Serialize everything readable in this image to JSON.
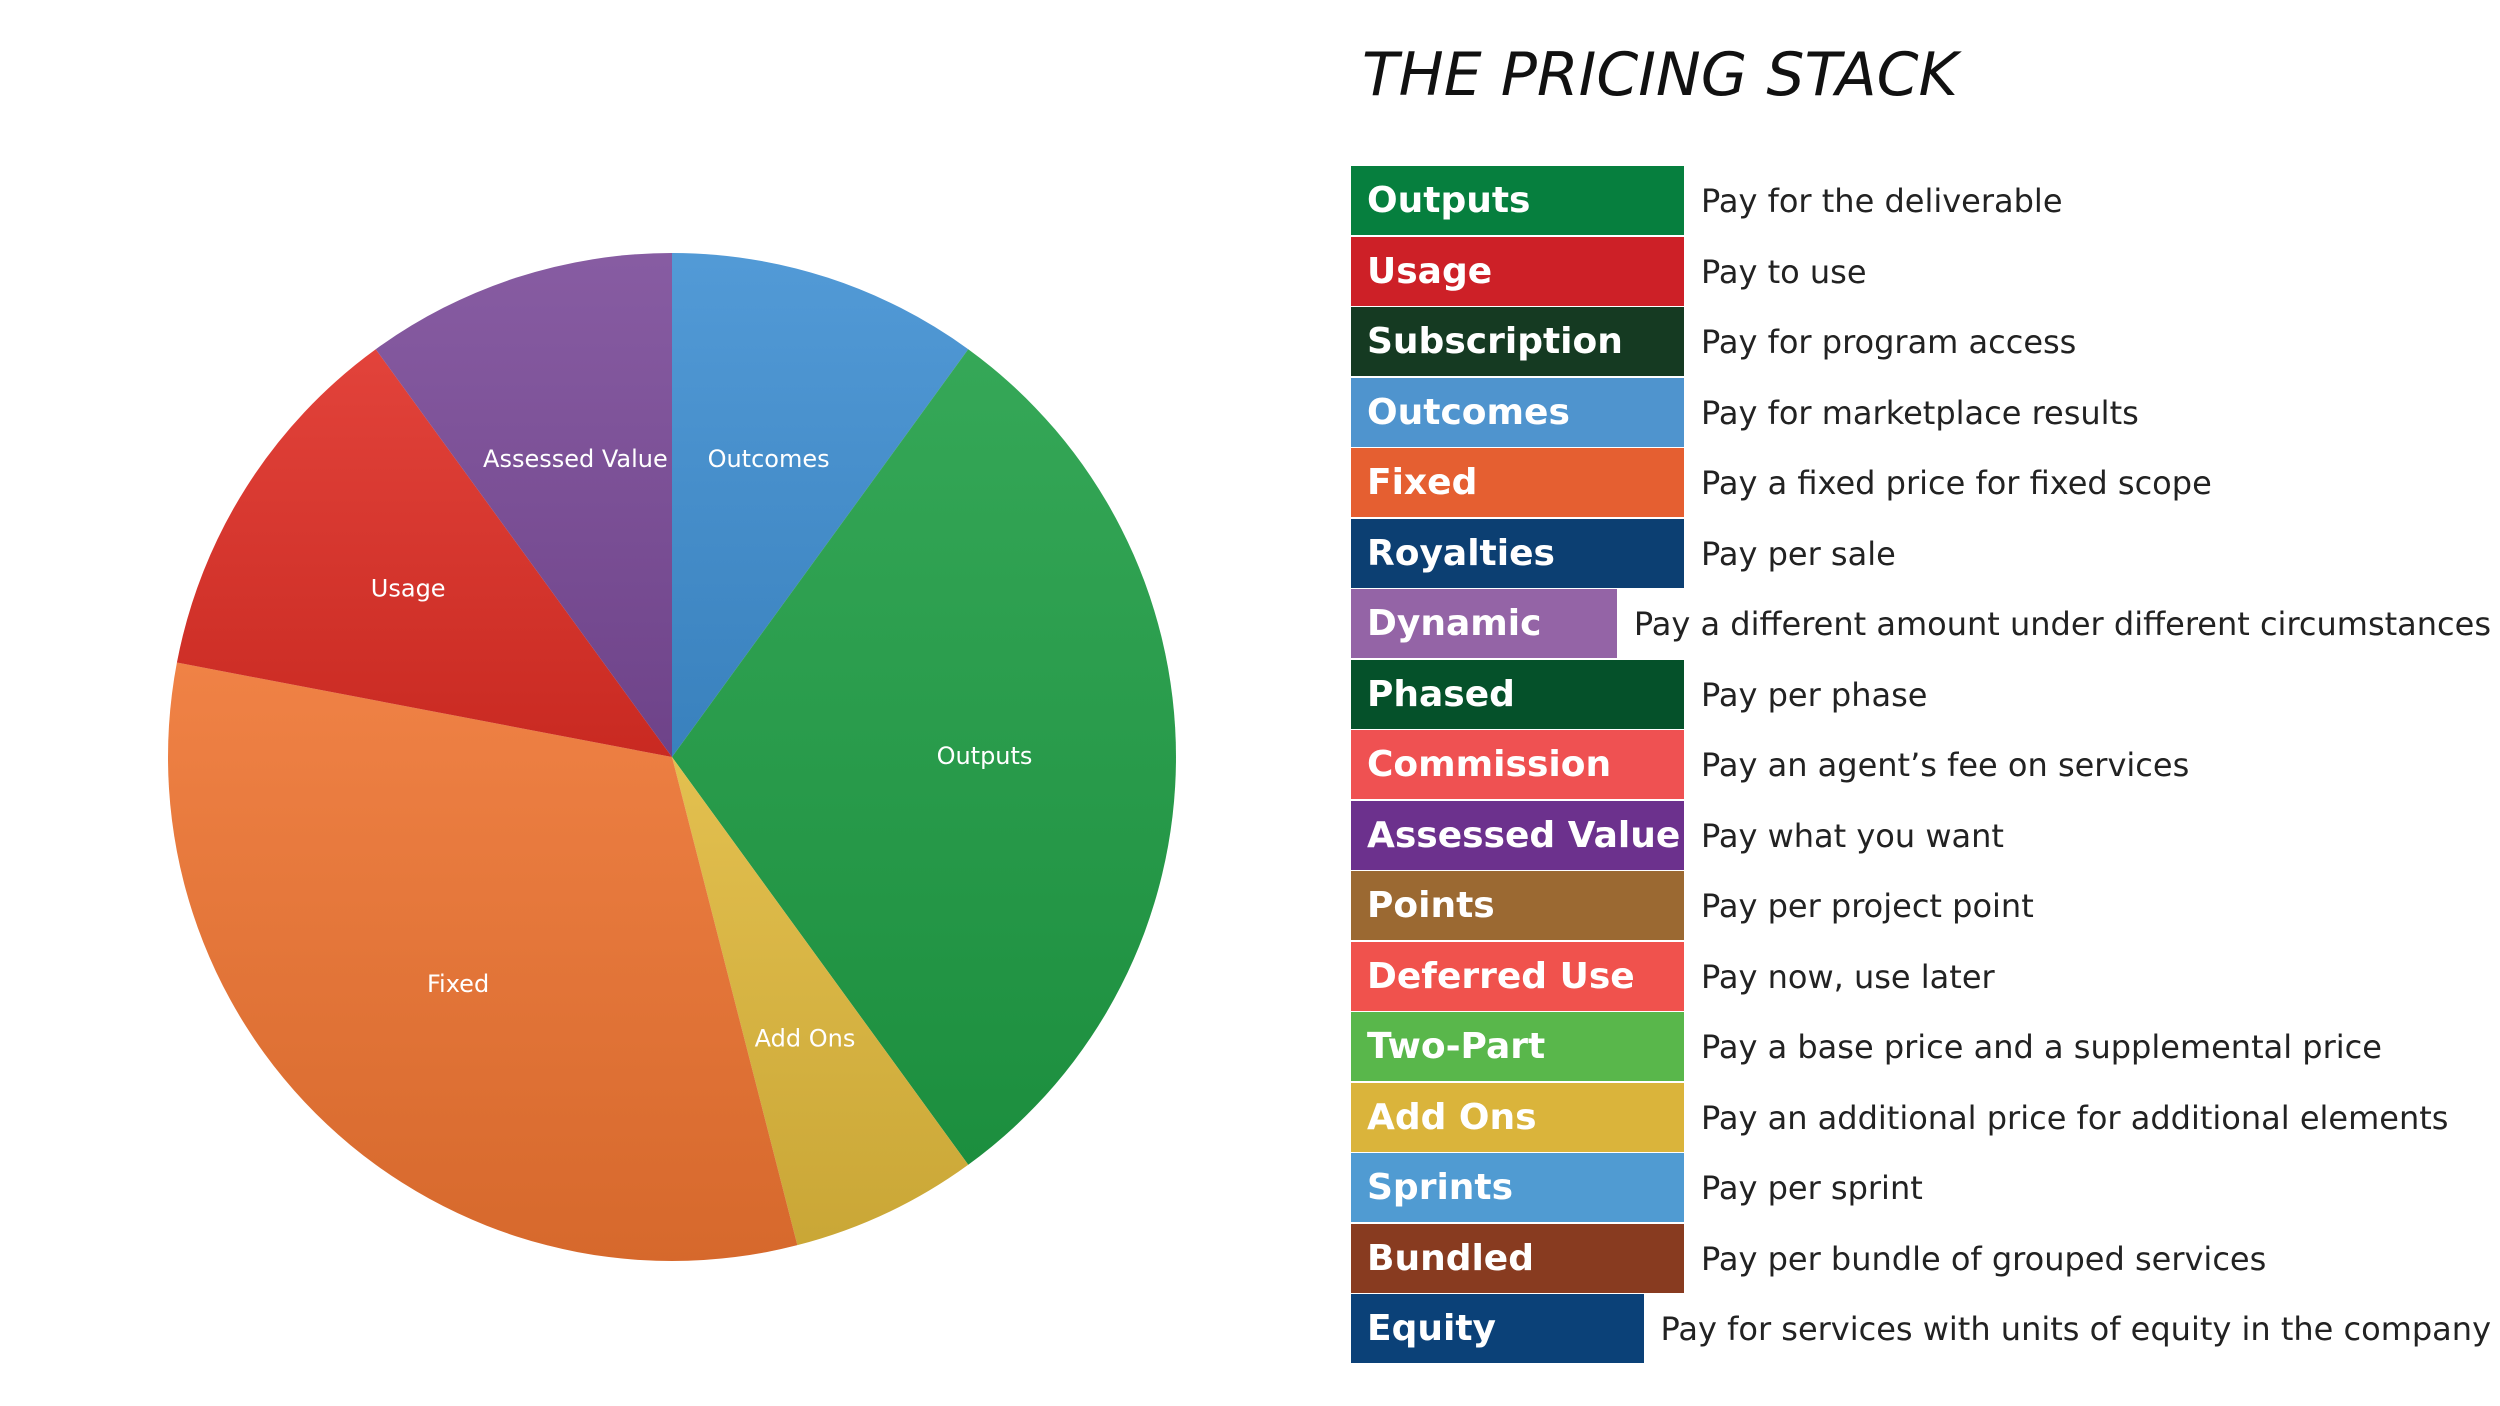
{
  "title": "THE PRICING STACK",
  "chart_data": {
    "type": "pie",
    "start_angle_deg": 0,
    "direction": "clockwise",
    "slices": [
      {
        "label": "Outcomes",
        "value": 10,
        "color": "#3f8fd2"
      },
      {
        "label": "Outputs",
        "value": 30,
        "color": "#1f9e45"
      },
      {
        "label": "Add Ons",
        "value": 6,
        "color": "#e0b93c"
      },
      {
        "label": "Fixed",
        "value": 32,
        "color": "#ee7431"
      },
      {
        "label": "Usage",
        "value": 12,
        "color": "#df2e25"
      },
      {
        "label": "Assessed Value",
        "value": 10,
        "color": "#7a4a98"
      }
    ]
  },
  "stack": [
    {
      "name": "Outputs",
      "desc": "Pay for the deliverable",
      "color": "#067f3e"
    },
    {
      "name": "Usage",
      "desc": "Pay to use",
      "color": "#cd2027"
    },
    {
      "name": "Subscription",
      "desc": "Pay for program access",
      "color": "#153a22"
    },
    {
      "name": "Outcomes",
      "desc": "Pay for marketplace results",
      "color": "#4f94ce"
    },
    {
      "name": "Fixed",
      "desc": "Pay a fixed price for fixed scope",
      "color": "#e55f31"
    },
    {
      "name": "Royalties",
      "desc": "Pay per sale",
      "color": "#0c3f72"
    },
    {
      "name": "Dynamic",
      "desc": "Pay a different amount under different circumstances",
      "color": "#9464a6"
    },
    {
      "name": "Phased",
      "desc": "Pay per phase",
      "color": "#05512a"
    },
    {
      "name": "Commission",
      "desc": "Pay an agent’s fee on services",
      "color": "#ef5152"
    },
    {
      "name": "Assessed Value",
      "desc": "Pay what you want",
      "color": "#6c318d"
    },
    {
      "name": "Points",
      "desc": "Pay per project point",
      "color": "#9b6932"
    },
    {
      "name": "Deferred Use",
      "desc": "Pay now, use later",
      "color": "#f0524d"
    },
    {
      "name": "Two-Part",
      "desc": "Pay a base price and a supplemental price",
      "color": "#59b74b"
    },
    {
      "name": "Add Ons",
      "desc": "Pay an additional price for additional elements",
      "color": "#dab43b"
    },
    {
      "name": "Sprints",
      "desc": "Pay per sprint",
      "color": "#509bd2"
    },
    {
      "name": "Bundled",
      "desc": "Pay per bundle of grouped services",
      "color": "#883b20"
    },
    {
      "name": "Equity",
      "desc": "Pay for services with units of equity in the company",
      "color": "#0b4178"
    }
  ]
}
